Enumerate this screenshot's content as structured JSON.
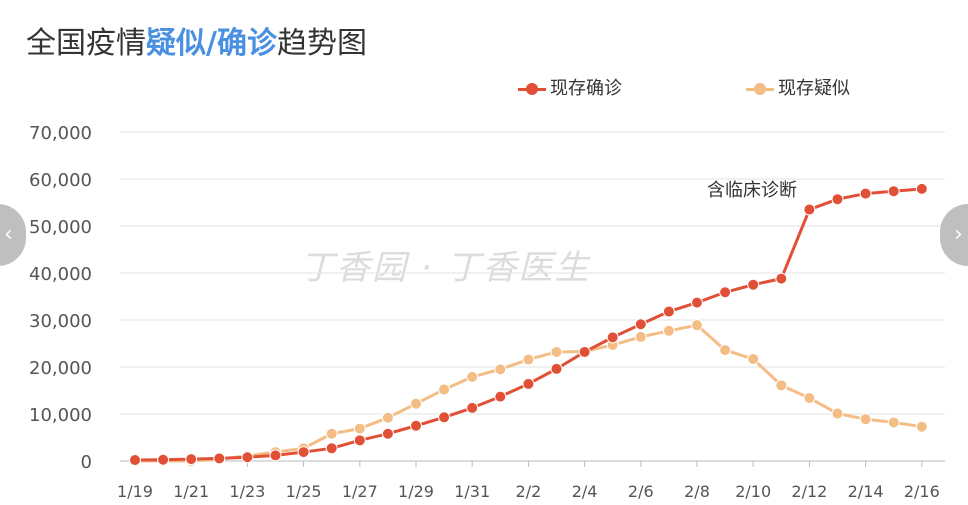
{
  "title": {
    "prefix": "全国疫情",
    "highlight": "疑似/确诊",
    "suffix": "趋势图"
  },
  "watermark": "丁香园 · 丁香医生",
  "nav": {
    "prev_icon": "chevron-left-icon",
    "next_icon": "chevron-right-icon"
  },
  "chart_data": {
    "type": "line",
    "y_ticks": [
      "0",
      "10,000",
      "20,000",
      "30,000",
      "40,000",
      "50,000",
      "60,000",
      "70,000"
    ],
    "ylim": [
      0,
      70000
    ],
    "x_ticks": [
      "1/19",
      "1/21",
      "1/23",
      "1/25",
      "1/27",
      "1/29",
      "1/31",
      "2/2",
      "2/4",
      "2/6",
      "2/8",
      "2/10",
      "2/12",
      "2/14",
      "2/16"
    ],
    "grid": true,
    "legend_position": "top-right",
    "annotation": {
      "text": "含临床诊断",
      "near": "2/12"
    },
    "series": [
      {
        "name": "现存确诊",
        "color": "#e04f36",
        "points": [
          {
            "date": "2020-01-19",
            "value": 200
          },
          {
            "date": "2020-01-20",
            "value": 270
          },
          {
            "date": "2020-01-21",
            "value": 400
          },
          {
            "date": "2020-01-22",
            "value": 550
          },
          {
            "date": "2020-01-23",
            "value": 800
          },
          {
            "date": "2020-01-24",
            "value": 1200
          },
          {
            "date": "2020-01-25",
            "value": 1900
          },
          {
            "date": "2020-01-26",
            "value": 2700
          },
          {
            "date": "2020-01-27",
            "value": 4400
          },
          {
            "date": "2020-01-28",
            "value": 5800
          },
          {
            "date": "2020-01-29",
            "value": 7500
          },
          {
            "date": "2020-01-30",
            "value": 9300
          },
          {
            "date": "2020-01-31",
            "value": 11300
          },
          {
            "date": "2020-02-01",
            "value": 13700
          },
          {
            "date": "2020-02-02",
            "value": 16400
          },
          {
            "date": "2020-02-03",
            "value": 19600
          },
          {
            "date": "2020-02-04",
            "value": 23200
          },
          {
            "date": "2020-02-05",
            "value": 26300
          },
          {
            "date": "2020-02-06",
            "value": 29100
          },
          {
            "date": "2020-02-07",
            "value": 31800
          },
          {
            "date": "2020-02-08",
            "value": 33700
          },
          {
            "date": "2020-02-09",
            "value": 35900
          },
          {
            "date": "2020-02-10",
            "value": 37500
          },
          {
            "date": "2020-02-11",
            "value": 38800
          },
          {
            "date": "2020-02-12",
            "value": 53500
          },
          {
            "date": "2020-02-13",
            "value": 55700
          },
          {
            "date": "2020-02-14",
            "value": 56900
          },
          {
            "date": "2020-02-15",
            "value": 57400
          },
          {
            "date": "2020-02-16",
            "value": 57900
          }
        ]
      },
      {
        "name": "现存疑似",
        "color": "#f5bd86",
        "points": [
          {
            "date": "2020-01-19",
            "value": 0
          },
          {
            "date": "2020-01-20",
            "value": 0
          },
          {
            "date": "2020-01-21",
            "value": 0
          },
          {
            "date": "2020-01-22",
            "value": 400
          },
          {
            "date": "2020-01-23",
            "value": 1100
          },
          {
            "date": "2020-01-24",
            "value": 1900
          },
          {
            "date": "2020-01-25",
            "value": 2700
          },
          {
            "date": "2020-01-26",
            "value": 5800
          },
          {
            "date": "2020-01-27",
            "value": 6900
          },
          {
            "date": "2020-01-28",
            "value": 9200
          },
          {
            "date": "2020-01-29",
            "value": 12200
          },
          {
            "date": "2020-01-30",
            "value": 15200
          },
          {
            "date": "2020-01-31",
            "value": 17900
          },
          {
            "date": "2020-02-01",
            "value": 19500
          },
          {
            "date": "2020-02-02",
            "value": 21600
          },
          {
            "date": "2020-02-03",
            "value": 23200
          },
          {
            "date": "2020-02-04",
            "value": 23300
          },
          {
            "date": "2020-02-05",
            "value": 24700
          },
          {
            "date": "2020-02-06",
            "value": 26400
          },
          {
            "date": "2020-02-07",
            "value": 27700
          },
          {
            "date": "2020-02-08",
            "value": 28900
          },
          {
            "date": "2020-02-09",
            "value": 23600
          },
          {
            "date": "2020-02-10",
            "value": 21700
          },
          {
            "date": "2020-02-11",
            "value": 16100
          },
          {
            "date": "2020-02-12",
            "value": 13400
          },
          {
            "date": "2020-02-13",
            "value": 10100
          },
          {
            "date": "2020-02-14",
            "value": 8900
          },
          {
            "date": "2020-02-15",
            "value": 8200
          },
          {
            "date": "2020-02-16",
            "value": 7300
          }
        ]
      }
    ]
  }
}
